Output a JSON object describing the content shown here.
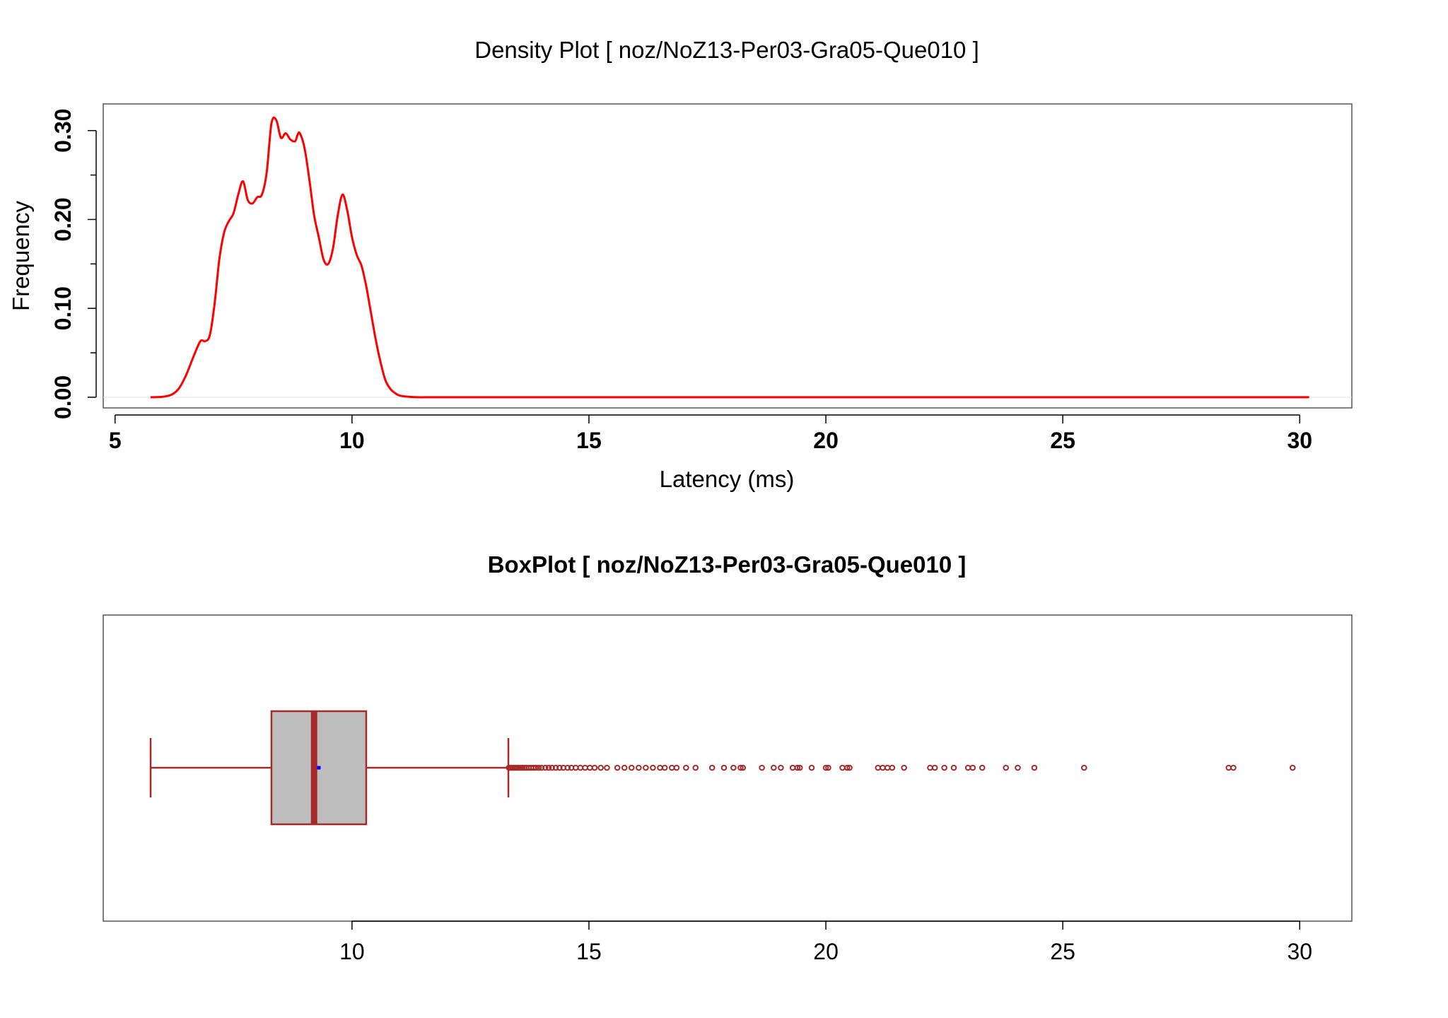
{
  "colors": {
    "density_line": "#ff0000",
    "box_border": "#a52a2a",
    "box_fill": "#bebebe",
    "median": "#a52a2a",
    "mean_marker": "#0000ff",
    "outlier": "#a52a2a",
    "axis": "#000000",
    "plot_border": "#555555"
  },
  "chart_data": [
    {
      "type": "line",
      "title": "Density Plot [ noz/NoZ13-Per03-Gra05-Que010 ]",
      "xlabel": "Latency (ms)",
      "ylabel": "Frequency",
      "xlim": [
        4.75,
        31.1
      ],
      "ylim": [
        -0.012,
        0.33
      ],
      "x_ticks": [
        5,
        10,
        15,
        20,
        25,
        30
      ],
      "y_ticks": [
        0.0,
        0.1,
        0.2,
        0.3
      ],
      "y_tick_labels": [
        "0.00",
        "0.10",
        "0.20",
        "0.30"
      ],
      "y_minor_ticks": [
        0.05,
        0.15,
        0.25
      ],
      "grid": false,
      "series": [
        {
          "x": [
            5.75,
            6.0,
            6.2,
            6.35,
            6.5,
            6.65,
            6.8,
            6.9,
            7.0,
            7.1,
            7.2,
            7.3,
            7.4,
            7.5,
            7.6,
            7.7,
            7.8,
            7.9,
            8.0,
            8.1,
            8.2,
            8.3,
            8.4,
            8.5,
            8.6,
            8.7,
            8.8,
            8.85,
            8.9,
            9.0,
            9.1,
            9.2,
            9.3,
            9.4,
            9.5,
            9.6,
            9.7,
            9.8,
            9.9,
            10.0,
            10.1,
            10.2,
            10.3,
            10.4,
            10.5,
            10.6,
            10.7,
            10.8,
            10.9,
            11.0,
            11.2,
            11.4,
            11.6,
            11.8,
            12.0,
            12.2,
            12.5,
            13.0,
            14.0,
            15.0,
            17.0,
            20.0,
            25.0,
            30.2
          ],
          "y": [
            0.0,
            0.0005,
            0.003,
            0.01,
            0.025,
            0.045,
            0.063,
            0.063,
            0.07,
            0.105,
            0.155,
            0.185,
            0.198,
            0.207,
            0.228,
            0.243,
            0.222,
            0.218,
            0.225,
            0.228,
            0.253,
            0.308,
            0.312,
            0.292,
            0.297,
            0.29,
            0.288,
            0.295,
            0.297,
            0.28,
            0.245,
            0.205,
            0.18,
            0.155,
            0.15,
            0.168,
            0.205,
            0.228,
            0.21,
            0.18,
            0.16,
            0.148,
            0.125,
            0.095,
            0.065,
            0.04,
            0.02,
            0.01,
            0.005,
            0.002,
            0.0005,
            0.0,
            0.0,
            0.0,
            0.0,
            0.0,
            0.0,
            0.0,
            0.0,
            0.0,
            0.0,
            0.0,
            0.0,
            0.0
          ]
        }
      ]
    },
    {
      "type": "box",
      "title": "BoxPlot [ noz/NoZ13-Per03-Gra05-Que010 ]",
      "xlim": [
        4.75,
        31.1
      ],
      "x_ticks": [
        10,
        15,
        20,
        25,
        30
      ],
      "stats": {
        "whisker_low": 5.75,
        "q1": 8.3,
        "median": 9.2,
        "q3": 10.3,
        "whisker_high": 13.3,
        "mean": 9.3
      },
      "outliers": [
        13.31,
        13.33,
        13.36,
        13.39,
        13.42,
        13.45,
        13.48,
        13.52,
        13.56,
        13.6,
        13.64,
        13.68,
        13.73,
        13.78,
        13.83,
        13.88,
        13.94,
        14.0,
        14.08,
        14.15,
        14.22,
        14.3,
        14.38,
        14.46,
        14.55,
        14.63,
        14.72,
        14.82,
        14.92,
        15.02,
        15.12,
        15.25,
        15.38,
        15.6,
        15.75,
        15.9,
        16.05,
        16.2,
        16.35,
        16.5,
        16.6,
        16.75,
        16.85,
        17.05,
        17.25,
        17.6,
        17.85,
        18.05,
        18.2,
        18.25,
        18.65,
        18.9,
        19.05,
        19.3,
        19.4,
        19.45,
        19.7,
        20.0,
        20.05,
        20.35,
        20.45,
        20.5,
        21.1,
        21.2,
        21.3,
        21.4,
        21.65,
        22.2,
        22.3,
        22.5,
        22.7,
        23.0,
        23.1,
        23.3,
        23.8,
        24.05,
        24.4,
        25.45,
        28.5,
        28.6,
        29.85
      ]
    }
  ]
}
